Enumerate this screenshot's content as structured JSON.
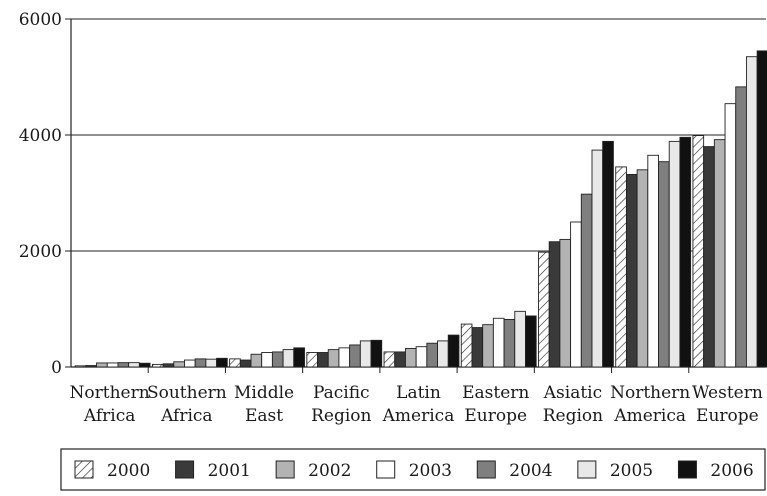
{
  "chart_data": {
    "type": "bar",
    "categories": [
      [
        "Northern",
        "Africa"
      ],
      [
        "Southern",
        "Africa"
      ],
      [
        "Middle",
        "East"
      ],
      [
        "Pacific",
        "Region"
      ],
      [
        "Latin",
        "America"
      ],
      [
        "Eastern",
        "Europe"
      ],
      [
        "Asiatic",
        "Region"
      ],
      [
        "Northern",
        "America"
      ],
      [
        "Western",
        "Europe"
      ]
    ],
    "series": [
      {
        "name": "2000",
        "style": "hatched",
        "color": "#ffffff",
        "values": [
          20,
          45,
          140,
          250,
          260,
          740,
          1980,
          3450,
          3990
        ]
      },
      {
        "name": "2001",
        "style": "solid",
        "color": "#3a3a3a",
        "values": [
          25,
          55,
          120,
          250,
          260,
          680,
          2160,
          3320,
          3800
        ]
      },
      {
        "name": "2002",
        "style": "solid",
        "color": "#b3b3b3",
        "values": [
          70,
          90,
          220,
          300,
          320,
          730,
          2200,
          3400,
          3920
        ]
      },
      {
        "name": "2003",
        "style": "solid",
        "color": "#ffffff",
        "values": [
          70,
          120,
          250,
          330,
          350,
          840,
          2500,
          3650,
          4540
        ]
      },
      {
        "name": "2004",
        "style": "solid",
        "color": "#7f7f7f",
        "values": [
          75,
          140,
          260,
          380,
          410,
          820,
          2980,
          3540,
          4830
        ]
      },
      {
        "name": "2005",
        "style": "solid",
        "color": "#e8e8e8",
        "values": [
          75,
          135,
          300,
          450,
          450,
          960,
          3740,
          3890,
          5350
        ]
      },
      {
        "name": "2006",
        "style": "solid",
        "color": "#111111",
        "values": [
          65,
          150,
          330,
          460,
          550,
          880,
          3890,
          3960,
          5450
        ]
      }
    ],
    "y_ticks": [
      "0",
      "2000",
      "4000",
      "6000"
    ],
    "ylim": [
      0,
      6000
    ],
    "grid": "horizontal",
    "legend": "bottom"
  }
}
